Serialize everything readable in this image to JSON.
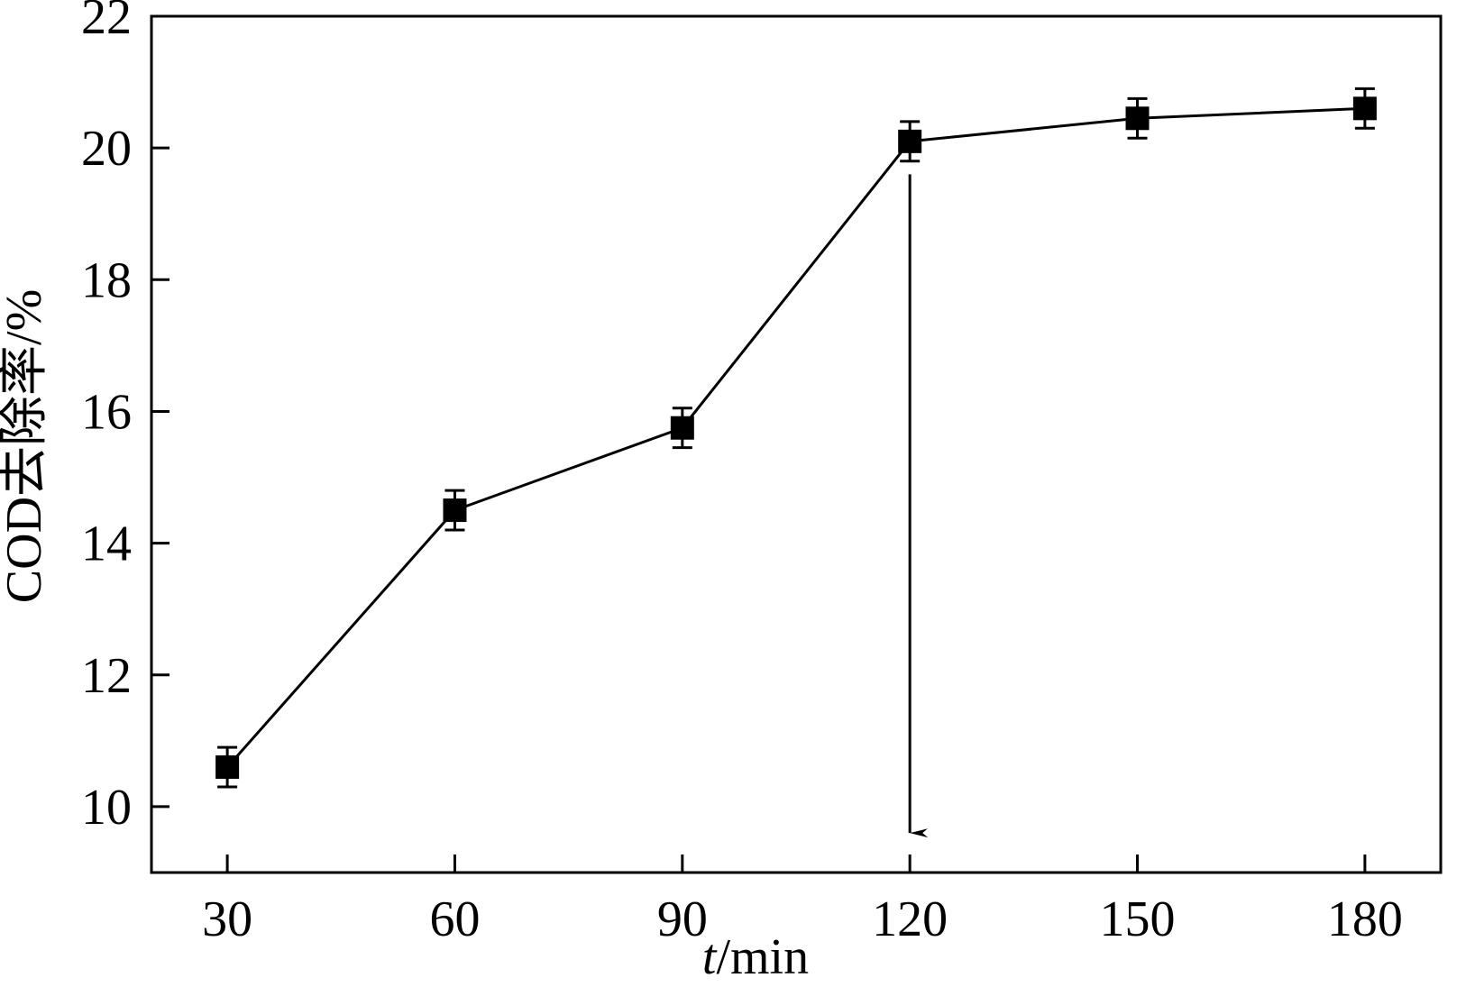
{
  "chart_data": {
    "type": "line",
    "x": [
      30,
      60,
      90,
      120,
      150,
      180
    ],
    "series": [
      {
        "values": [
          10.6,
          14.5,
          15.75,
          20.1,
          20.45,
          20.6
        ],
        "errors": [
          0.3,
          0.3,
          0.3,
          0.3,
          0.3,
          0.3
        ],
        "marker": "square",
        "color": "#000000"
      }
    ],
    "xlabel_italic": "t",
    "xlabel_rest": "/min",
    "ylabel": "COD去除率/%",
    "xlim": [
      20,
      190
    ],
    "ylim": [
      9,
      22
    ],
    "xticks": [
      30,
      60,
      90,
      120,
      150,
      180
    ],
    "yticks": [
      10,
      12,
      14,
      16,
      18,
      20,
      22
    ],
    "annotation": {
      "type": "arrow-down",
      "x": 120,
      "y_from": 19.6,
      "y_to": 9.6
    },
    "grid": false,
    "legend": "none"
  }
}
